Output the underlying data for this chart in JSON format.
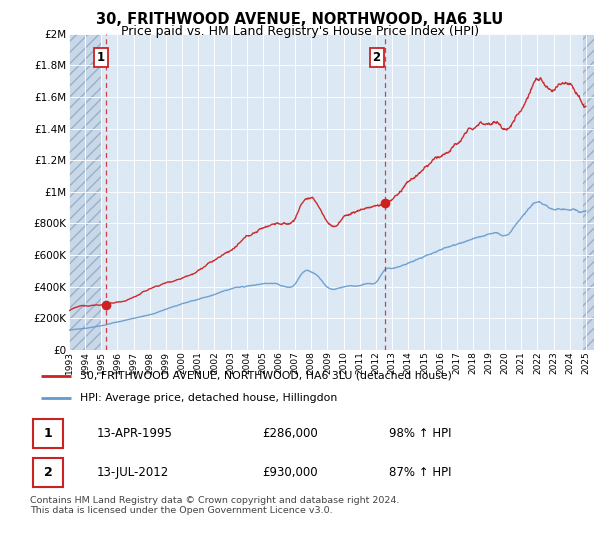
{
  "title": "30, FRITHWOOD AVENUE, NORTHWOOD, HA6 3LU",
  "subtitle": "Price paid vs. HM Land Registry's House Price Index (HPI)",
  "title_fontsize": 10.5,
  "subtitle_fontsize": 9,
  "background_color": "#ffffff",
  "plot_bg_color": "#dce9f5",
  "hatch_color": "#c8d8e8",
  "grid_color": "#b0c4d8",
  "legend_line1": "30, FRITHWOOD AVENUE, NORTHWOOD, HA6 3LU (detached house)",
  "legend_line2": "HPI: Average price, detached house, Hillingdon",
  "sale1_date": "13-APR-1995",
  "sale1_price": "£286,000",
  "sale1_hpi": "98% ↑ HPI",
  "sale2_date": "13-JUL-2012",
  "sale2_price": "£930,000",
  "sale2_hpi": "87% ↑ HPI",
  "footer": "Contains HM Land Registry data © Crown copyright and database right 2024.\nThis data is licensed under the Open Government Licence v3.0.",
  "red_line_color": "#cc2222",
  "blue_line_color": "#6699cc",
  "marker_color": "#cc2222",
  "vline_color": "#cc2222",
  "ylim": [
    0,
    2000000
  ],
  "yticks": [
    0,
    200000,
    400000,
    600000,
    800000,
    1000000,
    1200000,
    1400000,
    1600000,
    1800000,
    2000000
  ],
  "sale1_x": 1995.28,
  "sale1_y": 286000,
  "sale2_x": 2012.54,
  "sale2_y": 930000,
  "xmin": 1993,
  "xmax": 2025.5
}
